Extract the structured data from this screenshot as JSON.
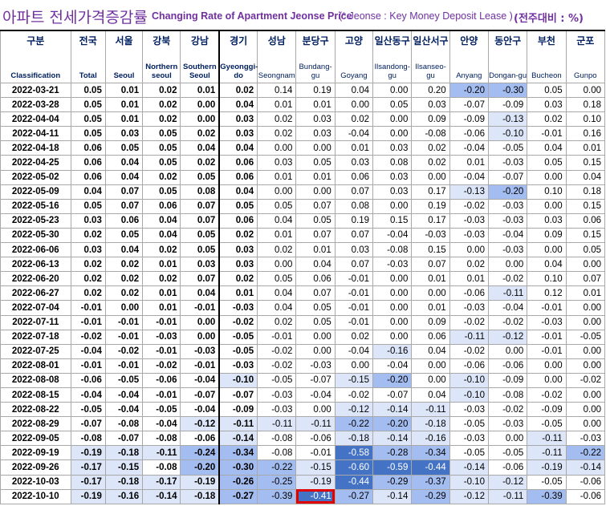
{
  "title": {
    "korean": "아파트 전세가격증감률",
    "english": "Changing Rate of Apartment Jeonse Price",
    "note": "(* Jeonse : Key Money Deposit Lease )",
    "unit": "(전주대비 : %)"
  },
  "columns": [
    {
      "ko": "구분",
      "en": "Classification"
    },
    {
      "ko": "전국",
      "en": "Total"
    },
    {
      "ko": "서울",
      "en": "Seoul"
    },
    {
      "ko": "강북",
      "en": "Northern seoul"
    },
    {
      "ko": "강남",
      "en": "Southern Seoul"
    },
    {
      "ko": "경기",
      "en": "Gyeonggi-do"
    },
    {
      "ko": "성남",
      "en": "Seongnam"
    },
    {
      "ko": "분당구",
      "en": "Bundang-gu"
    },
    {
      "ko": "고양",
      "en": "Goyang"
    },
    {
      "ko": "일산동구",
      "en": "Ilsandong-gu"
    },
    {
      "ko": "일산서구",
      "en": "Ilsanseo-gu"
    },
    {
      "ko": "안양",
      "en": "Anyang"
    },
    {
      "ko": "동안구",
      "en": "Dongan-gu"
    },
    {
      "ko": "부천",
      "en": "Bucheon"
    },
    {
      "ko": "군포",
      "en": "Gunpo"
    }
  ],
  "rows": [
    {
      "date": "2022-03-21",
      "values": [
        "0.05",
        "0.01",
        "0.02",
        "0.01",
        "0.02",
        "0.14",
        "0.19",
        "0.04",
        "0.00",
        "0.20",
        "-0.20",
        "-0.30",
        "0.05",
        "0.00"
      ]
    },
    {
      "date": "2022-03-28",
      "values": [
        "0.05",
        "0.01",
        "0.02",
        "0.00",
        "0.04",
        "0.01",
        "0.01",
        "0.00",
        "0.05",
        "0.03",
        "-0.07",
        "-0.09",
        "0.03",
        "0.18"
      ]
    },
    {
      "date": "2022-04-04",
      "values": [
        "0.05",
        "0.01",
        "0.02",
        "0.00",
        "0.03",
        "0.02",
        "0.03",
        "0.02",
        "0.00",
        "0.09",
        "-0.09",
        "-0.13",
        "0.02",
        "0.10"
      ]
    },
    {
      "date": "2022-04-11",
      "values": [
        "0.05",
        "0.03",
        "0.05",
        "0.02",
        "0.03",
        "0.02",
        "0.03",
        "-0.04",
        "0.00",
        "-0.08",
        "-0.06",
        "-0.10",
        "-0.01",
        "0.16"
      ]
    },
    {
      "date": "2022-04-18",
      "values": [
        "0.06",
        "0.05",
        "0.05",
        "0.04",
        "0.04",
        "0.00",
        "0.00",
        "0.01",
        "0.03",
        "0.02",
        "-0.04",
        "-0.05",
        "0.04",
        "0.01"
      ]
    },
    {
      "date": "2022-04-25",
      "values": [
        "0.06",
        "0.04",
        "0.05",
        "0.02",
        "0.06",
        "0.03",
        "0.05",
        "0.03",
        "0.08",
        "0.02",
        "0.01",
        "-0.03",
        "0.05",
        "0.15"
      ]
    },
    {
      "date": "2022-05-02",
      "values": [
        "0.06",
        "0.04",
        "0.02",
        "0.05",
        "0.06",
        "0.01",
        "0.01",
        "0.06",
        "0.03",
        "0.00",
        "-0.04",
        "-0.07",
        "0.00",
        "0.04"
      ]
    },
    {
      "date": "2022-05-09",
      "values": [
        "0.04",
        "0.07",
        "0.05",
        "0.08",
        "0.04",
        "0.00",
        "0.00",
        "0.07",
        "0.03",
        "0.17",
        "-0.13",
        "-0.20",
        "0.10",
        "0.18"
      ]
    },
    {
      "date": "2022-05-16",
      "values": [
        "0.05",
        "0.07",
        "0.06",
        "0.07",
        "0.05",
        "0.05",
        "0.07",
        "0.08",
        "0.00",
        "0.19",
        "-0.02",
        "-0.03",
        "0.00",
        "0.15"
      ]
    },
    {
      "date": "2022-05-23",
      "values": [
        "0.03",
        "0.06",
        "0.04",
        "0.07",
        "0.06",
        "0.04",
        "0.05",
        "0.19",
        "0.15",
        "0.17",
        "-0.03",
        "-0.03",
        "0.03",
        "0.06"
      ]
    },
    {
      "date": "2022-05-30",
      "values": [
        "0.02",
        "0.05",
        "0.04",
        "0.05",
        "0.02",
        "0.01",
        "0.07",
        "0.07",
        "-0.04",
        "-0.03",
        "-0.03",
        "-0.04",
        "0.09",
        "0.15"
      ]
    },
    {
      "date": "2022-06-06",
      "values": [
        "0.03",
        "0.04",
        "0.02",
        "0.05",
        "0.03",
        "0.02",
        "0.01",
        "0.03",
        "-0.08",
        "0.15",
        "0.00",
        "-0.03",
        "0.00",
        "0.05"
      ]
    },
    {
      "date": "2022-06-13",
      "values": [
        "0.02",
        "0.02",
        "0.01",
        "0.03",
        "0.03",
        "0.00",
        "0.04",
        "0.07",
        "-0.03",
        "0.07",
        "0.02",
        "0.00",
        "0.04",
        "0.00"
      ]
    },
    {
      "date": "2022-06-20",
      "values": [
        "0.02",
        "0.02",
        "0.02",
        "0.07",
        "0.02",
        "0.05",
        "0.06",
        "-0.01",
        "0.00",
        "0.01",
        "0.01",
        "-0.02",
        "0.10",
        "0.07"
      ]
    },
    {
      "date": "2022-06-27",
      "values": [
        "0.02",
        "0.02",
        "0.01",
        "0.04",
        "0.01",
        "0.04",
        "0.07",
        "-0.01",
        "0.00",
        "0.00",
        "-0.06",
        "-0.11",
        "0.12",
        "0.01"
      ]
    },
    {
      "date": "2022-07-04",
      "values": [
        "-0.01",
        "0.00",
        "0.01",
        "-0.01",
        "-0.03",
        "0.04",
        "0.05",
        "-0.01",
        "0.00",
        "0.01",
        "-0.03",
        "-0.04",
        "-0.01",
        "0.00"
      ]
    },
    {
      "date": "2022-07-11",
      "values": [
        "-0.01",
        "-0.01",
        "-0.01",
        "0.00",
        "-0.02",
        "0.02",
        "0.05",
        "-0.01",
        "0.00",
        "0.09",
        "-0.02",
        "-0.02",
        "-0.03",
        "0.00"
      ]
    },
    {
      "date": "2022-07-18",
      "values": [
        "-0.02",
        "-0.01",
        "-0.03",
        "0.00",
        "-0.05",
        "-0.01",
        "0.00",
        "0.02",
        "0.00",
        "0.06",
        "-0.11",
        "-0.12",
        "-0.01",
        "-0.05"
      ]
    },
    {
      "date": "2022-07-25",
      "values": [
        "-0.04",
        "-0.02",
        "-0.01",
        "-0.03",
        "-0.05",
        "-0.02",
        "0.00",
        "-0.04",
        "-0.16",
        "0.04",
        "-0.02",
        "0.00",
        "-0.01",
        "0.00"
      ]
    },
    {
      "date": "2022-08-01",
      "values": [
        "-0.01",
        "-0.01",
        "-0.02",
        "-0.01",
        "-0.03",
        "-0.02",
        "-0.03",
        "0.00",
        "-0.04",
        "0.00",
        "-0.06",
        "-0.06",
        "0.00",
        "0.00"
      ]
    },
    {
      "date": "2022-08-08",
      "values": [
        "-0.06",
        "-0.05",
        "-0.06",
        "-0.04",
        "-0.10",
        "-0.05",
        "-0.07",
        "-0.15",
        "-0.20",
        "0.00",
        "-0.10",
        "-0.09",
        "0.00",
        "-0.02"
      ]
    },
    {
      "date": "2022-08-15",
      "values": [
        "-0.04",
        "-0.04",
        "-0.01",
        "-0.07",
        "-0.07",
        "-0.03",
        "-0.04",
        "-0.02",
        "-0.07",
        "0.04",
        "-0.10",
        "-0.08",
        "-0.02",
        "0.00"
      ]
    },
    {
      "date": "2022-08-22",
      "values": [
        "-0.05",
        "-0.04",
        "-0.05",
        "-0.04",
        "-0.09",
        "-0.03",
        "0.00",
        "-0.12",
        "-0.14",
        "-0.11",
        "-0.03",
        "-0.02",
        "-0.09",
        "0.00"
      ]
    },
    {
      "date": "2022-08-29",
      "values": [
        "-0.07",
        "-0.08",
        "-0.04",
        "-0.12",
        "-0.11",
        "-0.11",
        "-0.11",
        "-0.22",
        "-0.20",
        "-0.18",
        "-0.05",
        "-0.03",
        "-0.05",
        "0.00"
      ]
    },
    {
      "date": "2022-09-05",
      "values": [
        "-0.08",
        "-0.07",
        "-0.08",
        "-0.06",
        "-0.14",
        "-0.08",
        "-0.06",
        "-0.18",
        "-0.14",
        "-0.16",
        "-0.03",
        "0.00",
        "-0.11",
        "-0.03"
      ]
    },
    {
      "date": "2022-09-19",
      "values": [
        "-0.19",
        "-0.18",
        "-0.11",
        "-0.24",
        "-0.34",
        "-0.08",
        "-0.01",
        "-0.58",
        "-0.28",
        "-0.34",
        "-0.05",
        "-0.05",
        "-0.11",
        "-0.22"
      ]
    },
    {
      "date": "2022-09-26",
      "values": [
        "-0.17",
        "-0.15",
        "-0.08",
        "-0.20",
        "-0.30",
        "-0.22",
        "-0.15",
        "-0.60",
        "-0.59",
        "-0.44",
        "-0.14",
        "-0.06",
        "-0.19",
        "-0.14"
      ]
    },
    {
      "date": "2022-10-03",
      "values": [
        "-0.17",
        "-0.18",
        "-0.17",
        "-0.19",
        "-0.26",
        "-0.25",
        "-0.19",
        "-0.44",
        "-0.29",
        "-0.37",
        "-0.10",
        "-0.12",
        "-0.05",
        "-0.06"
      ]
    },
    {
      "date": "2022-10-10",
      "values": [
        "-0.19",
        "-0.16",
        "-0.14",
        "-0.18",
        "-0.27",
        "-0.39",
        "-0.41",
        "-0.27",
        "-0.14",
        "-0.29",
        "-0.12",
        "-0.11",
        "-0.39",
        "-0.06"
      ]
    }
  ],
  "highlight": {
    "date": "2022-10-10",
    "column": "분당구"
  },
  "colors": {
    "title": "#7030a0",
    "header_text": "#002060",
    "shade_light": "#dce6f8",
    "shade_mid": "#a4bdf0",
    "shade_dark": "#4472c4",
    "highlight_border": "#e00000"
  }
}
